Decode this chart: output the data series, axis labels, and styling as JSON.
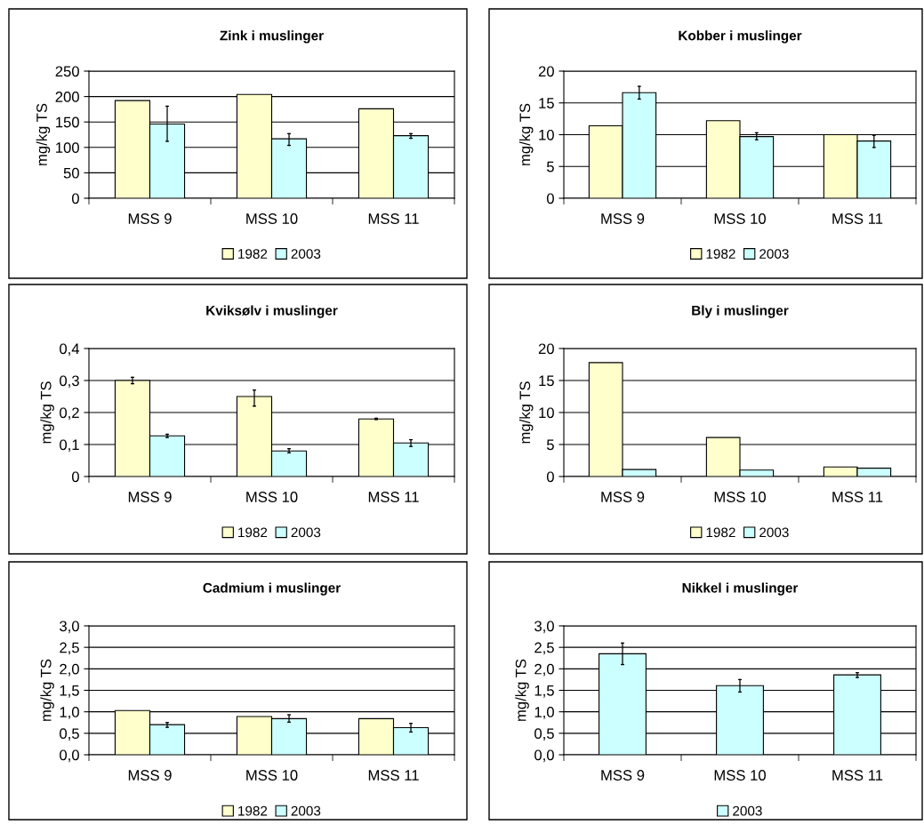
{
  "chart_data": [
    {
      "type": "bar",
      "title": "Zink i muslinger",
      "ylabel": "mg/kg TS",
      "categories": [
        "MSS 9",
        "MSS 10",
        "MSS 11"
      ],
      "series": [
        {
          "name": "1982",
          "color": "#ffffcc",
          "values": [
            192,
            204,
            176
          ]
        },
        {
          "name": "2003",
          "color": "#ccffff",
          "values": [
            146,
            117,
            123
          ],
          "errors": [
            [
              112,
              181
            ],
            [
              104,
              127
            ],
            [
              118,
              127
            ]
          ]
        }
      ],
      "ylim": [
        0,
        250
      ],
      "yticks": [
        0,
        50,
        100,
        150,
        200,
        250
      ],
      "grid": "y",
      "legend": "bottom"
    },
    {
      "type": "bar",
      "title": "Kobber i muslinger",
      "ylabel": "mg/kg TS",
      "categories": [
        "MSS 9",
        "MSS 10",
        "MSS 11"
      ],
      "series": [
        {
          "name": "1982",
          "color": "#ffffcc",
          "values": [
            11.4,
            12.2,
            10.0
          ]
        },
        {
          "name": "2003",
          "color": "#ccffff",
          "values": [
            16.6,
            9.7,
            9.0
          ],
          "errors": [
            [
              15.6,
              17.6
            ],
            [
              9.2,
              10.3
            ],
            [
              8.0,
              9.9
            ]
          ]
        }
      ],
      "ylim": [
        0,
        20
      ],
      "yticks": [
        0,
        5,
        10,
        15,
        20
      ],
      "grid": "y",
      "legend": "bottom"
    },
    {
      "type": "bar",
      "title": "Kviksølv i muslinger",
      "ylabel": "mg/kg TS",
      "categories": [
        "MSS 9",
        "MSS 10",
        "MSS 11"
      ],
      "series": [
        {
          "name": "1982",
          "color": "#ffffcc",
          "values": [
            0.3,
            0.25,
            0.18
          ],
          "errors": [
            [
              0.29,
              0.31
            ],
            [
              0.22,
              0.27
            ],
            [
              0.178,
              0.182
            ]
          ]
        },
        {
          "name": "2003",
          "color": "#ccffff",
          "values": [
            0.127,
            0.08,
            0.105
          ],
          "errors": [
            [
              0.122,
              0.132
            ],
            [
              0.074,
              0.087
            ],
            [
              0.094,
              0.115
            ]
          ]
        }
      ],
      "ylim": [
        0,
        0.4
      ],
      "yticks": [
        0,
        {
          "value": 0.1,
          "label": "0,1"
        },
        {
          "value": 0.2,
          "label": "0,2"
        },
        {
          "value": 0.3,
          "label": "0,3"
        },
        {
          "value": 0.4,
          "label": "0,4"
        }
      ],
      "grid": "y",
      "legend": "bottom"
    },
    {
      "type": "bar",
      "title": "Bly i muslinger",
      "ylabel": "mg/kg TS",
      "categories": [
        "MSS 9",
        "MSS 10",
        "MSS 11"
      ],
      "series": [
        {
          "name": "1982",
          "color": "#ffffcc",
          "values": [
            17.8,
            6.1,
            1.5
          ]
        },
        {
          "name": "2003",
          "color": "#ccffff",
          "values": [
            1.1,
            1.0,
            1.3
          ]
        }
      ],
      "ylim": [
        0,
        20
      ],
      "yticks": [
        0,
        5,
        10,
        15,
        20
      ],
      "grid": "y",
      "legend": "bottom"
    },
    {
      "type": "bar",
      "title": "Cadmium i muslinger",
      "ylabel": "mg/kg TS",
      "categories": [
        "MSS 9",
        "MSS 10",
        "MSS 11"
      ],
      "series": [
        {
          "name": "1982",
          "color": "#ffffcc",
          "values": [
            1.03,
            0.89,
            0.84
          ]
        },
        {
          "name": "2003",
          "color": "#ccffff",
          "values": [
            0.7,
            0.84,
            0.63
          ],
          "errors": [
            [
              0.64,
              0.75
            ],
            [
              0.76,
              0.93
            ],
            [
              0.53,
              0.73
            ]
          ]
        }
      ],
      "ylim": [
        0,
        3.0
      ],
      "yticks": [
        {
          "value": 0,
          "label": "0,0"
        },
        {
          "value": 0.5,
          "label": "0,5"
        },
        {
          "value": 1.0,
          "label": "1,0"
        },
        {
          "value": 1.5,
          "label": "1,5"
        },
        {
          "value": 2.0,
          "label": "2,0"
        },
        {
          "value": 2.5,
          "label": "2,5"
        },
        {
          "value": 3.0,
          "label": "3,0"
        }
      ],
      "grid": "y",
      "legend": "bottom"
    },
    {
      "type": "bar",
      "title": "Nikkel i muslinger",
      "ylabel": "mg/kg TS",
      "categories": [
        "MSS 9",
        "MSS 10",
        "MSS 11"
      ],
      "series": [
        {
          "name": "2003",
          "color": "#ccffff",
          "values": [
            2.35,
            1.61,
            1.86
          ],
          "errors": [
            [
              2.1,
              2.6
            ],
            [
              1.46,
              1.75
            ],
            [
              1.8,
              1.91
            ]
          ]
        }
      ],
      "ylim": [
        0,
        3.0
      ],
      "yticks": [
        {
          "value": 0,
          "label": "0,0"
        },
        {
          "value": 0.5,
          "label": "0,5"
        },
        {
          "value": 1.0,
          "label": "1,0"
        },
        {
          "value": 1.5,
          "label": "1,5"
        },
        {
          "value": 2.0,
          "label": "2,0"
        },
        {
          "value": 2.5,
          "label": "2,5"
        },
        {
          "value": 3.0,
          "label": "3,0"
        }
      ],
      "grid": "y",
      "legend": "bottom"
    }
  ]
}
